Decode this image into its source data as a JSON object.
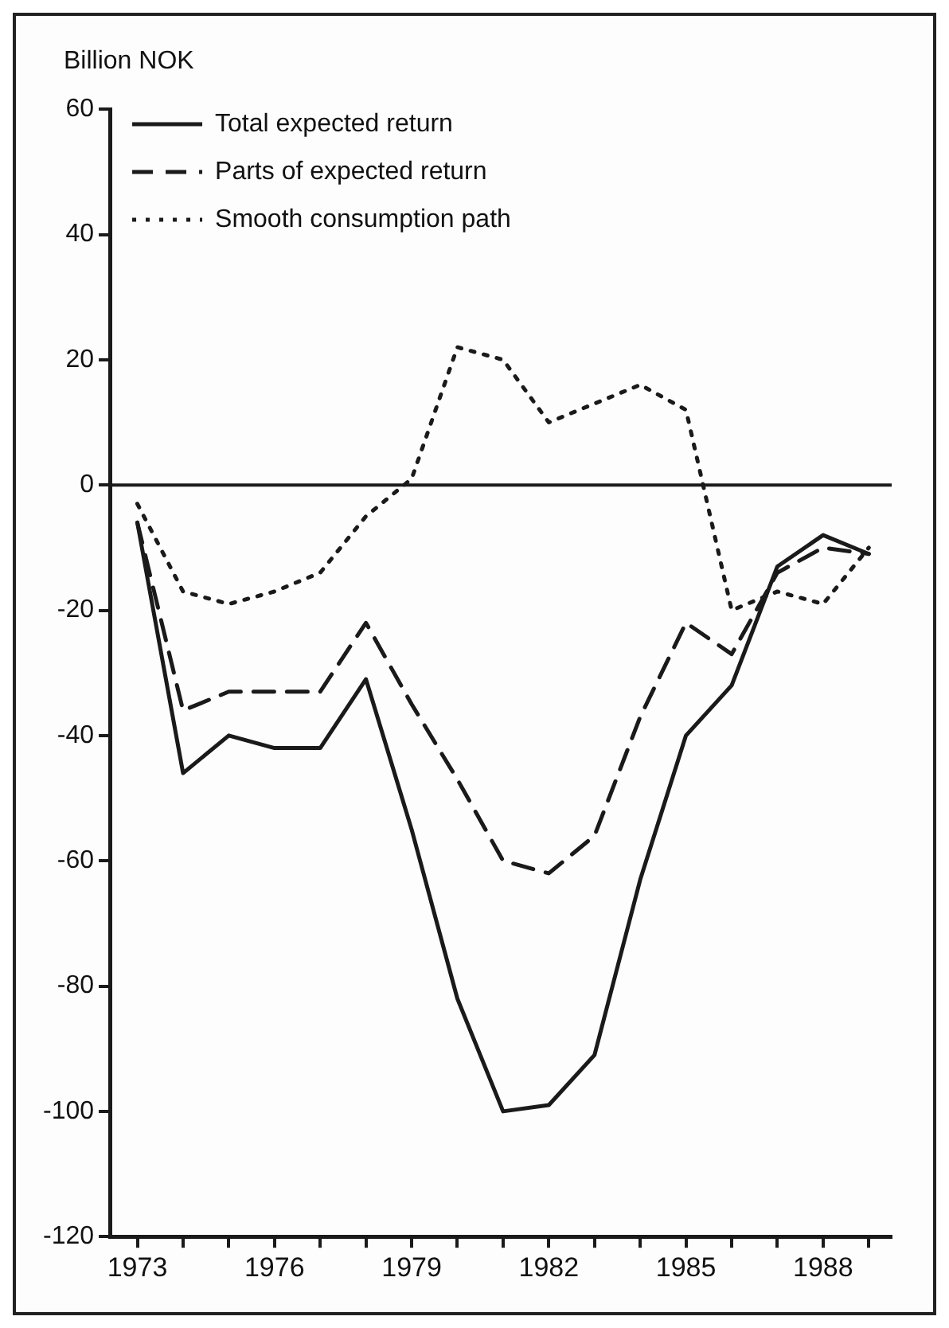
{
  "chart_data": {
    "type": "line",
    "ylabel": "Billion NOK",
    "x": [
      1973,
      1974,
      1975,
      1976,
      1977,
      1978,
      1979,
      1980,
      1981,
      1982,
      1983,
      1984,
      1985,
      1986,
      1987,
      1988,
      1989
    ],
    "series": [
      {
        "name": "Total expected return",
        "color": "#1a1a1a",
        "line_style": "solid",
        "values": [
          -6,
          -46,
          -40,
          -42,
          -42,
          -31,
          -55,
          -82,
          -100,
          -99,
          -91,
          -63,
          -40,
          -32,
          -13,
          -8,
          -11
        ]
      },
      {
        "name": "Parts of expected return",
        "color": "#1a1a1a",
        "line_style": "dashed",
        "values": [
          -6,
          -36,
          -33,
          -33,
          -33,
          -22,
          -35,
          -47,
          -60,
          -62,
          -56,
          -37,
          -22,
          -27,
          -14,
          -10,
          -11
        ]
      },
      {
        "name": "Smooth consumption path",
        "color": "#1a1a1a",
        "line_style": "dotted",
        "values": [
          -3,
          -17,
          -19,
          -17,
          -14,
          -5,
          1,
          22,
          20,
          10,
          13,
          16,
          12,
          -20,
          -17,
          -19,
          -10
        ]
      }
    ],
    "xlim": [
      1972.4,
      1989.5
    ],
    "xticks": [
      1973,
      {
        "value": 1974,
        "label": null
      },
      {
        "value": 1975,
        "label": null
      },
      1976,
      {
        "value": 1977,
        "label": null
      },
      {
        "value": 1978,
        "label": null
      },
      1979,
      {
        "value": 1980,
        "label": null
      },
      {
        "value": 1981,
        "label": null
      },
      1982,
      {
        "value": 1983,
        "label": null
      },
      {
        "value": 1984,
        "label": null
      },
      1985,
      {
        "value": 1986,
        "label": null
      },
      {
        "value": 1987,
        "label": null
      },
      1988,
      {
        "value": 1989,
        "label": null
      }
    ],
    "ylim": [
      -120,
      60
    ],
    "yticks": [
      -120,
      -100,
      -80,
      -60,
      -40,
      -20,
      0,
      20,
      40,
      60
    ],
    "ref_lines": [
      {
        "axis": "y",
        "value": 0,
        "color": "#1a1a1a"
      }
    ],
    "grid": false,
    "legend": "top left",
    "marker": "none"
  }
}
